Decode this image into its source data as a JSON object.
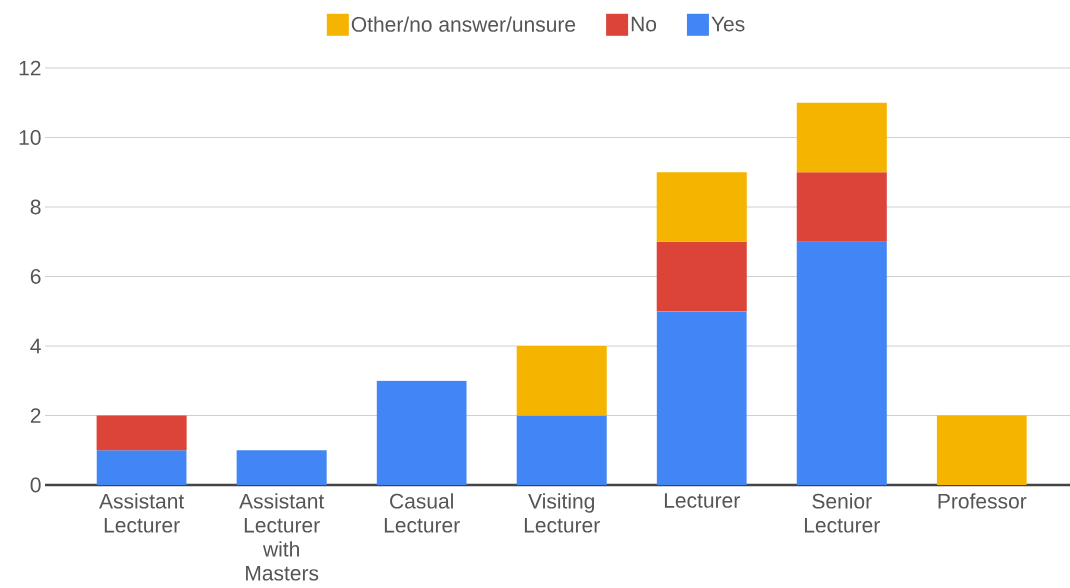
{
  "chart_data": {
    "type": "bar",
    "stacked": true,
    "categories": [
      "Assistant Lecturer",
      "Assistant Lecturer with Masters",
      "Casual Lecturer",
      "Visiting Lecturer",
      "Lecturer",
      "Senior Lecturer",
      "Professor"
    ],
    "series": [
      {
        "name": "Yes",
        "color": "#4285f4",
        "values": [
          1,
          1,
          3,
          2,
          5,
          7,
          null
        ]
      },
      {
        "name": "No",
        "color": "#db4437",
        "values": [
          1,
          null,
          null,
          null,
          2,
          2,
          null
        ]
      },
      {
        "name": "Other/no answer/unsure",
        "color": "#f4b400",
        "values": [
          null,
          null,
          null,
          2,
          2,
          2,
          2
        ]
      }
    ],
    "ylim": [
      0,
      12
    ],
    "yticks": [
      0,
      2,
      4,
      6,
      8,
      10,
      12
    ],
    "grid": "y",
    "legend": "top"
  }
}
